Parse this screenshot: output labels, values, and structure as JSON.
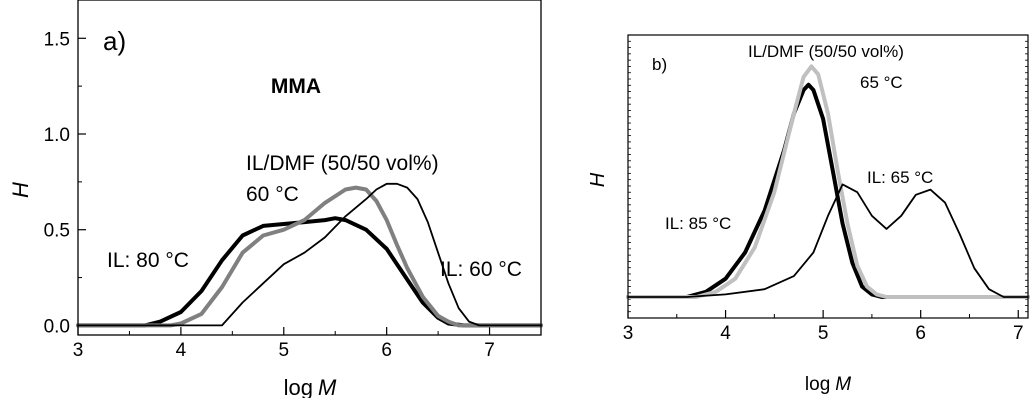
{
  "chart_data": [
    {
      "type": "line",
      "panel_label": "a)",
      "title": "MMA",
      "xlabel": "log",
      "xlabel_italic": "M",
      "ylabel": "H",
      "xlim": [
        3,
        7.5
      ],
      "ylim": [
        -0.05,
        1.7
      ],
      "x_ticks": [
        "3",
        "4",
        "5",
        "6",
        "7"
      ],
      "y_ticks": [
        "0.0",
        "0.5",
        "1.0",
        "1.5"
      ],
      "annotations": [
        "IL/DMF (50/50 vol%)",
        "60 °C",
        "IL: 80 °C",
        "IL: 60 °C"
      ],
      "series": [
        {
          "color": "#000000",
          "width": 4,
          "x": [
            3.0,
            3.65,
            3.8,
            4.0,
            4.2,
            4.4,
            4.6,
            4.8,
            5.0,
            5.2,
            5.4,
            5.5,
            5.6,
            5.8,
            6.0,
            6.2,
            6.35,
            6.5,
            6.6,
            6.75,
            7.5
          ],
          "y": [
            0.0,
            0.0,
            0.02,
            0.07,
            0.18,
            0.34,
            0.47,
            0.52,
            0.53,
            0.54,
            0.55,
            0.56,
            0.55,
            0.5,
            0.4,
            0.24,
            0.12,
            0.04,
            0.01,
            0.0,
            0.0
          ]
        },
        {
          "color": "#808080",
          "width": 4,
          "x": [
            3.0,
            3.9,
            4.0,
            4.2,
            4.4,
            4.6,
            4.8,
            5.0,
            5.2,
            5.4,
            5.6,
            5.7,
            5.8,
            5.9,
            6.0,
            6.1,
            6.2,
            6.35,
            6.5,
            6.6,
            6.7,
            7.5
          ],
          "y": [
            0.0,
            0.0,
            0.01,
            0.06,
            0.2,
            0.38,
            0.47,
            0.5,
            0.55,
            0.64,
            0.71,
            0.72,
            0.71,
            0.65,
            0.55,
            0.42,
            0.3,
            0.15,
            0.05,
            0.02,
            0.0,
            0.0
          ]
        },
        {
          "color": "#000000",
          "width": 1.8,
          "x": [
            3.0,
            4.4,
            4.6,
            4.8,
            5.0,
            5.2,
            5.4,
            5.6,
            5.8,
            5.9,
            6.0,
            6.1,
            6.2,
            6.3,
            6.4,
            6.5,
            6.6,
            6.7,
            6.8,
            6.9,
            7.5
          ],
          "y": [
            0.0,
            0.0,
            0.12,
            0.22,
            0.32,
            0.38,
            0.46,
            0.57,
            0.66,
            0.71,
            0.74,
            0.74,
            0.72,
            0.66,
            0.54,
            0.38,
            0.22,
            0.09,
            0.02,
            0.0,
            0.0
          ]
        }
      ]
    },
    {
      "type": "line",
      "panel_label": "b)",
      "xlabel": "log",
      "xlabel_italic": "M",
      "ylabel": "H",
      "xlim": [
        3,
        7.1
      ],
      "ylim": [
        -0.08,
        1.0
      ],
      "x_ticks": [
        "3",
        "4",
        "5",
        "6",
        "7"
      ],
      "annotations": [
        "IL/DMF (50/50 vol%)",
        "65 °C",
        "IL: 65 °C",
        "IL: 85 °C"
      ],
      "series": [
        {
          "color": "#000000",
          "width": 4,
          "x": [
            3.0,
            3.6,
            3.8,
            4.0,
            4.2,
            4.4,
            4.6,
            4.7,
            4.8,
            4.85,
            4.9,
            5.0,
            5.1,
            5.2,
            5.3,
            5.4,
            5.5,
            5.6,
            7.1
          ],
          "y": [
            0.0,
            0.0,
            0.02,
            0.07,
            0.17,
            0.33,
            0.56,
            0.7,
            0.79,
            0.81,
            0.79,
            0.68,
            0.48,
            0.28,
            0.13,
            0.04,
            0.01,
            0.0,
            0.0
          ]
        },
        {
          "color": "#c0c0c0",
          "width": 4,
          "x": [
            3.0,
            3.7,
            3.9,
            4.1,
            4.3,
            4.5,
            4.7,
            4.8,
            4.88,
            4.95,
            5.05,
            5.15,
            5.25,
            5.35,
            5.45,
            5.55,
            5.65,
            7.1
          ],
          "y": [
            0.0,
            0.0,
            0.02,
            0.07,
            0.19,
            0.4,
            0.7,
            0.84,
            0.88,
            0.85,
            0.7,
            0.48,
            0.28,
            0.12,
            0.04,
            0.01,
            0.0,
            0.0
          ]
        },
        {
          "color": "#000000",
          "width": 1.8,
          "x": [
            3.0,
            3.6,
            4.0,
            4.4,
            4.7,
            4.9,
            5.05,
            5.2,
            5.35,
            5.5,
            5.65,
            5.8,
            5.95,
            6.1,
            6.25,
            6.4,
            6.55,
            6.7,
            6.85,
            7.1
          ],
          "y": [
            0.0,
            0.0,
            0.01,
            0.03,
            0.08,
            0.17,
            0.31,
            0.43,
            0.4,
            0.31,
            0.26,
            0.31,
            0.39,
            0.41,
            0.36,
            0.24,
            0.11,
            0.03,
            0.0,
            0.0
          ]
        }
      ]
    }
  ]
}
